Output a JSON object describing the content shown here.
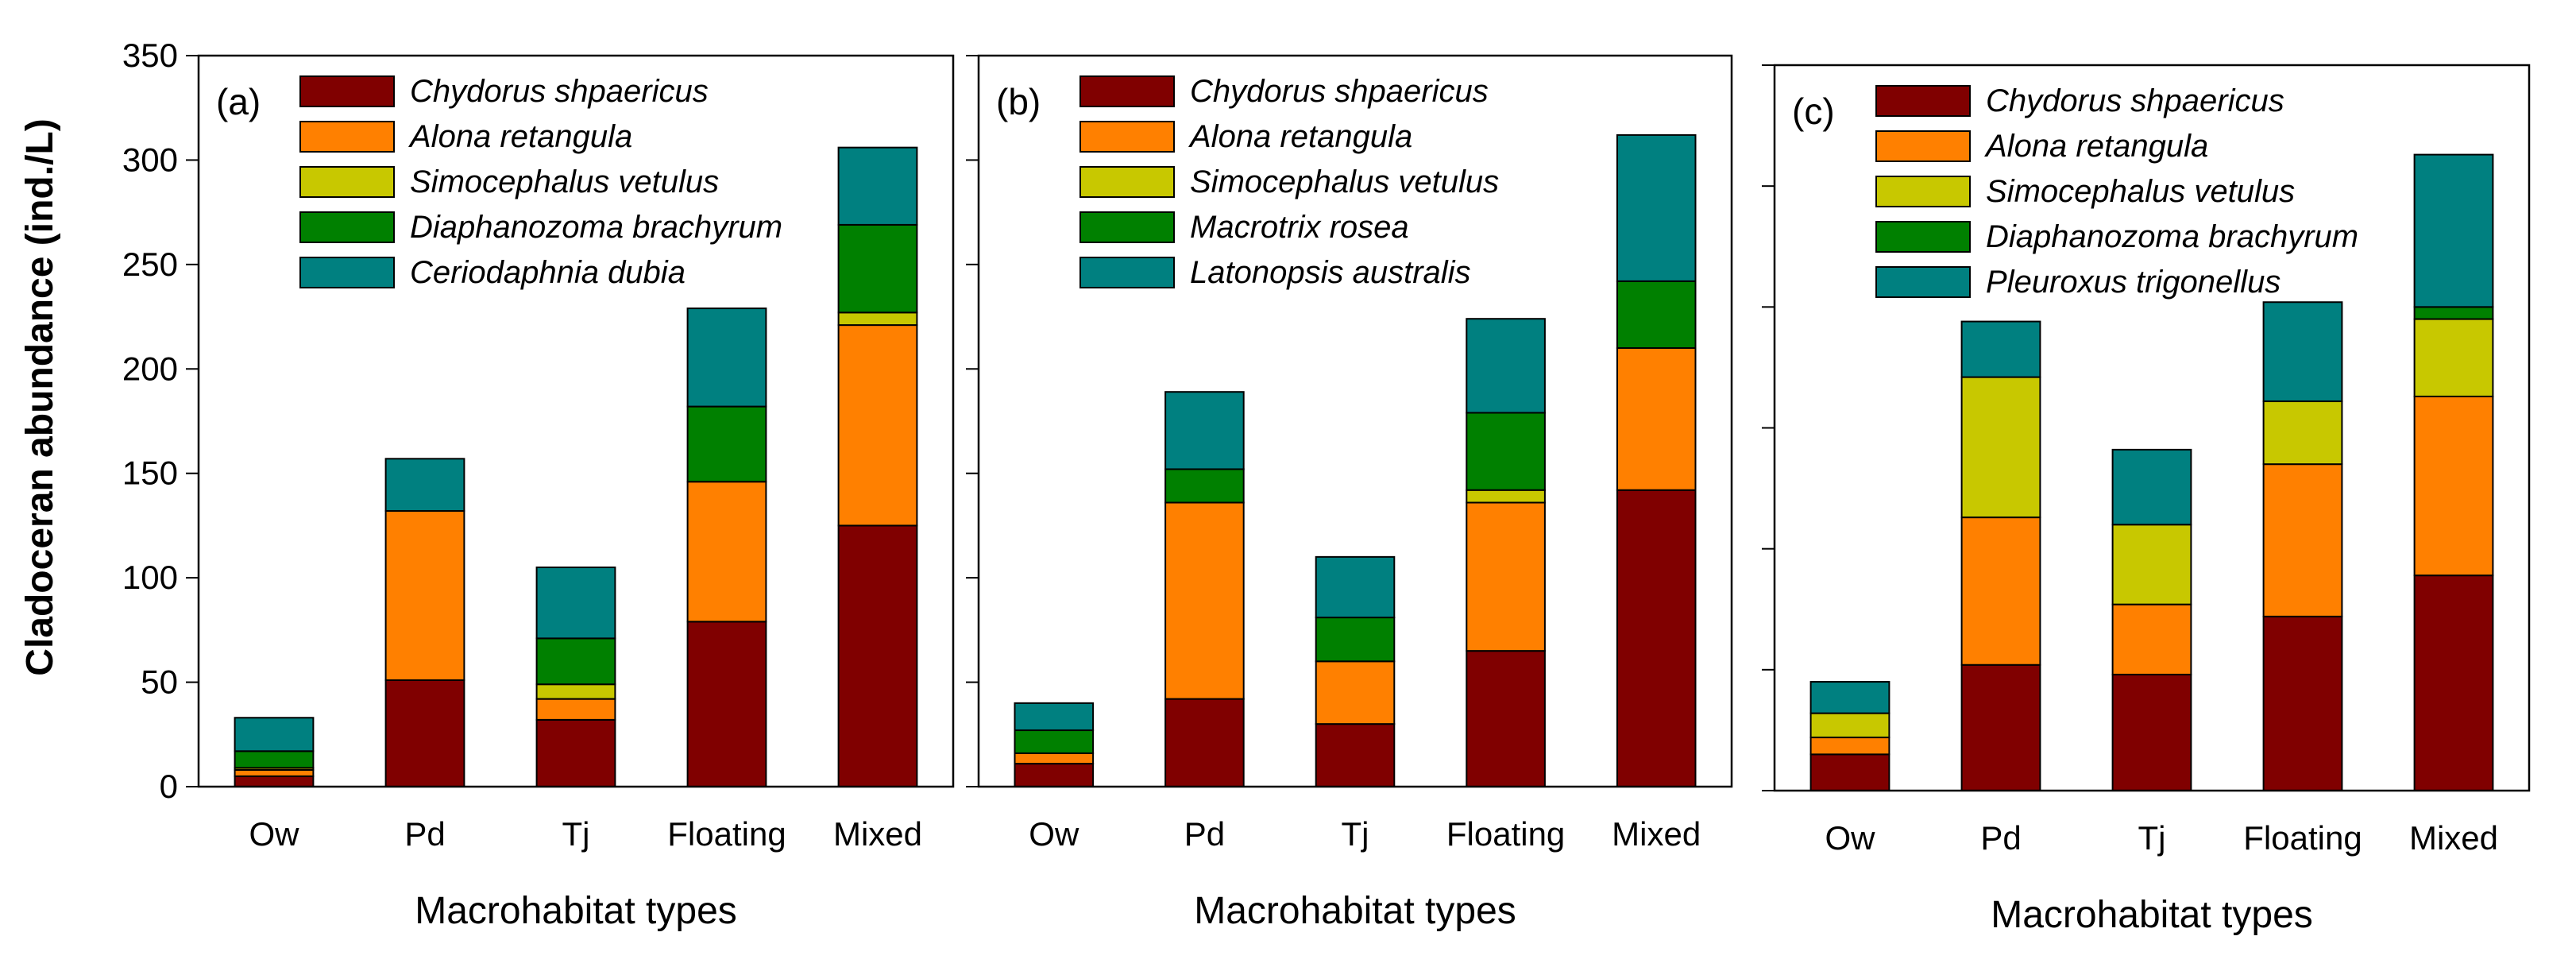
{
  "chart_data": [
    {
      "type": "bar",
      "stacked": true,
      "panel_label": "(a)",
      "xlabel": "Macrohabitat types",
      "ylabel": "Cladoceran abundance (ind./L)",
      "ylim": [
        0,
        350
      ],
      "yticks": [
        0,
        50,
        100,
        150,
        200,
        250,
        300,
        350
      ],
      "show_ytick_labels": true,
      "categories": [
        "Ow",
        "Pd",
        "Tj",
        "Floating",
        "Mixed"
      ],
      "series": [
        {
          "name": "Chydorus shpaericus",
          "color": "#800000",
          "values": [
            5,
            51,
            32,
            79,
            125
          ]
        },
        {
          "name": "Alona retangula",
          "color": "#ff8000",
          "values": [
            3,
            81,
            10,
            67,
            96
          ]
        },
        {
          "name": "Simocephalus vetulus",
          "color": "#c8c800",
          "values": [
            1,
            0,
            7,
            0,
            6
          ]
        },
        {
          "name": "Diaphanozoma brachyrum",
          "color": "#008000",
          "values": [
            8,
            0,
            22,
            36,
            42
          ]
        },
        {
          "name": "Ceriodaphnia dubia",
          "color": "#008080",
          "values": [
            16,
            25,
            34,
            47,
            37
          ]
        }
      ]
    },
    {
      "type": "bar",
      "stacked": true,
      "panel_label": "(b)",
      "xlabel": "Macrohabitat types",
      "ylim": [
        0,
        350
      ],
      "yticks": [
        0,
        50,
        100,
        150,
        200,
        250,
        300,
        350
      ],
      "show_ytick_labels": false,
      "categories": [
        "Ow",
        "Pd",
        "Tj",
        "Floating",
        "Mixed"
      ],
      "series": [
        {
          "name": "Chydorus shpaericus",
          "color": "#800000",
          "values": [
            11,
            42,
            30,
            65,
            142
          ]
        },
        {
          "name": "Alona retangula",
          "color": "#ff8000",
          "values": [
            5,
            94,
            30,
            71,
            68
          ]
        },
        {
          "name": "Simocephalus vetulus",
          "color": "#c8c800",
          "values": [
            0,
            0,
            0,
            6,
            0
          ]
        },
        {
          "name": "Macrotrix rosea",
          "color": "#008000",
          "values": [
            11,
            16,
            21,
            37,
            32
          ]
        },
        {
          "name": "Latonopsis australis",
          "color": "#008080",
          "values": [
            13,
            37,
            29,
            45,
            70
          ]
        }
      ]
    },
    {
      "type": "bar",
      "stacked": true,
      "panel_label": "(c)",
      "xlabel": "Macrohabitat types",
      "ylim": [
        0,
        300
      ],
      "yticks": [
        0,
        50,
        100,
        150,
        200,
        250,
        300
      ],
      "show_ytick_labels": false,
      "categories": [
        "Ow",
        "Pd",
        "Tj",
        "Floating",
        "Mixed"
      ],
      "series": [
        {
          "name": "Chydorus shpaericus",
          "color": "#800000",
          "values": [
            15,
            52,
            48,
            72,
            89
          ]
        },
        {
          "name": "Alona retangula",
          "color": "#ff8000",
          "values": [
            7,
            61,
            29,
            63,
            74
          ]
        },
        {
          "name": "Simocephalus vetulus",
          "color": "#c8c800",
          "values": [
            10,
            58,
            33,
            26,
            32
          ]
        },
        {
          "name": "Diaphanozoma brachyrum",
          "color": "#008000",
          "values": [
            0,
            0,
            0,
            0,
            5
          ]
        },
        {
          "name": "Pleuroxus trigonellus",
          "color": "#008080",
          "values": [
            13,
            23,
            31,
            41,
            63
          ]
        }
      ]
    }
  ]
}
